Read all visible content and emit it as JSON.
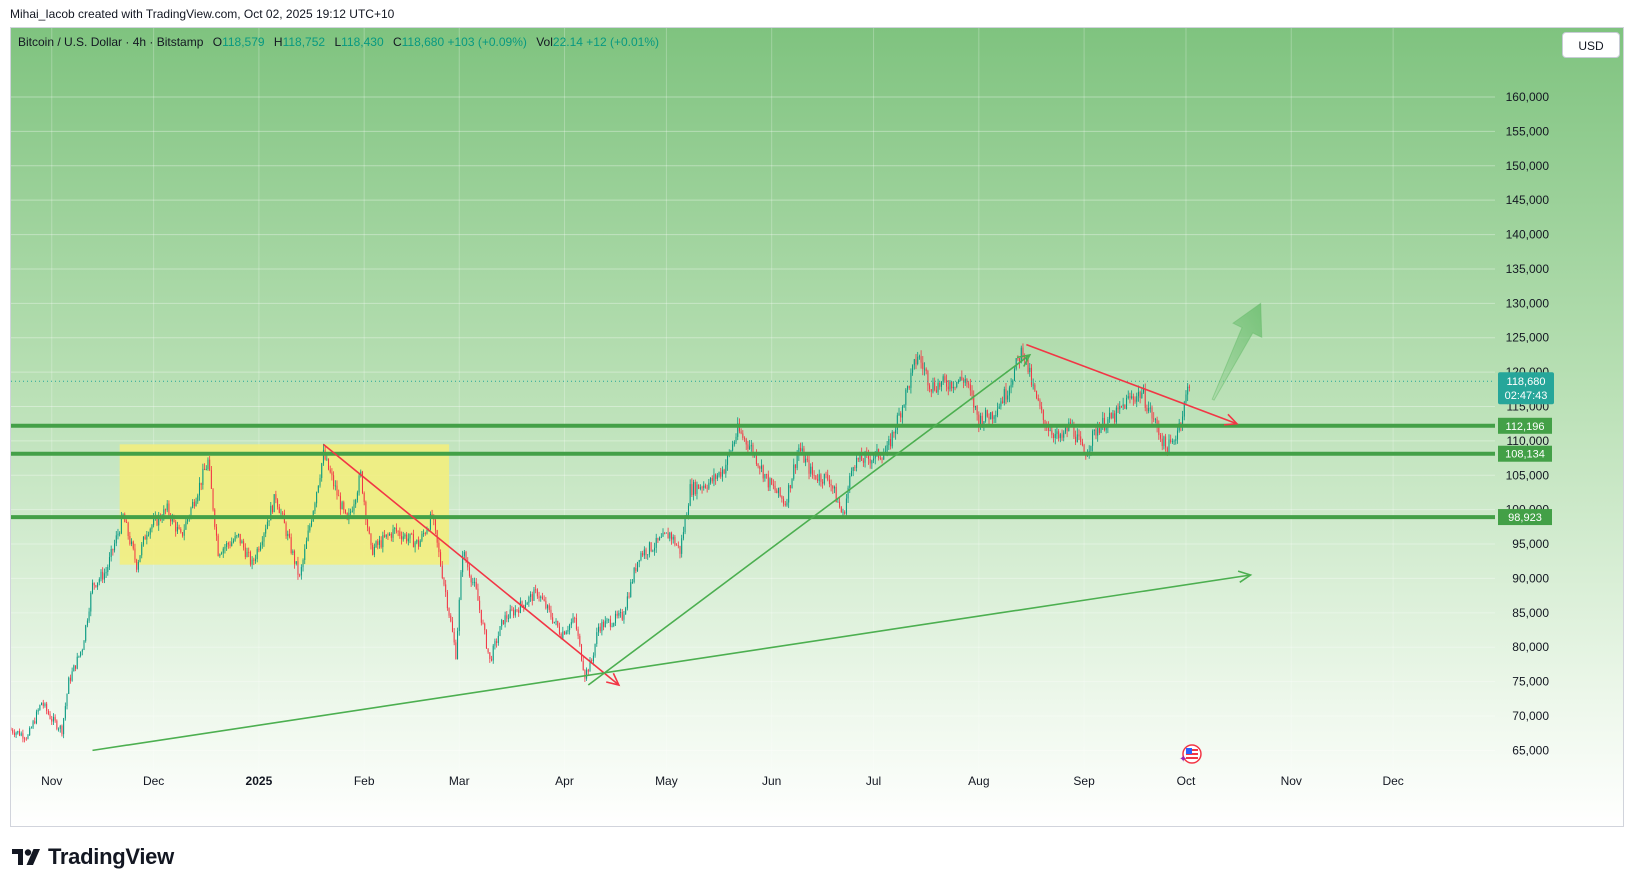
{
  "header": {
    "credit": "Mihai_Iacob created with TradingView.com, Oct 02, 2025 19:12 UTC+10"
  },
  "legend": {
    "symbol": "Bitcoin / U.S. Dollar · 4h · Bitstamp",
    "o_label": "O",
    "o_value": "118,579",
    "h_label": "H",
    "h_value": "118,752",
    "l_label": "L",
    "l_value": "118,430",
    "c_label": "C",
    "c_value": "118,680",
    "change": "+103 (+0.09%)",
    "vol_label": "Vol",
    "vol_value": "22.14",
    "vol_change": "+12 (+0.01%)"
  },
  "currency_button": "USD",
  "brand": {
    "name": "TradingView",
    "icon": "tradingview-logo-icon"
  },
  "colors": {
    "up": "#089981",
    "down": "#f23645",
    "level": "#43a047",
    "trend_green": "#4caf50",
    "trend_red": "#f23645",
    "box": "#f5ef7a",
    "price_tag": "#26a69a"
  },
  "chart_data": {
    "type": "candlestick",
    "symbol": "Bitcoin / U.S. Dollar",
    "interval": "4h",
    "exchange": "Bitstamp",
    "currency": "USD",
    "ylim": [
      62000,
      168000
    ],
    "y_ticks": [
      {
        "value": 65000,
        "label": "65,000"
      },
      {
        "value": 70000,
        "label": "70,000"
      },
      {
        "value": 75000,
        "label": "75,000"
      },
      {
        "value": 80000,
        "label": "80,000"
      },
      {
        "value": 85000,
        "label": "85,000"
      },
      {
        "value": 90000,
        "label": "90,000"
      },
      {
        "value": 95000,
        "label": "95,000"
      },
      {
        "value": 100000,
        "label": "100,000"
      },
      {
        "value": 105000,
        "label": "105,000"
      },
      {
        "value": 110000,
        "label": "110,000"
      },
      {
        "value": 115000,
        "label": "115,000"
      },
      {
        "value": 120000,
        "label": "120,000"
      },
      {
        "value": 125000,
        "label": "125,000"
      },
      {
        "value": 130000,
        "label": "130,000"
      },
      {
        "value": 135000,
        "label": "135,000"
      },
      {
        "value": 140000,
        "label": "140,000"
      },
      {
        "value": 145000,
        "label": "145,000"
      },
      {
        "value": 150000,
        "label": "150,000"
      },
      {
        "value": 155000,
        "label": "155,000"
      },
      {
        "value": 160000,
        "label": "160,000"
      }
    ],
    "x_range": [
      "2024-10-20",
      "2025-12-31"
    ],
    "x_ticks": [
      {
        "date": "2024-11-01",
        "label": "Nov",
        "bold": false
      },
      {
        "date": "2024-12-01",
        "label": "Dec",
        "bold": false
      },
      {
        "date": "2025-01-01",
        "label": "2025",
        "bold": true
      },
      {
        "date": "2025-02-01",
        "label": "Feb",
        "bold": false
      },
      {
        "date": "2025-03-01",
        "label": "Mar",
        "bold": false
      },
      {
        "date": "2025-04-01",
        "label": "Apr",
        "bold": false
      },
      {
        "date": "2025-05-01",
        "label": "May",
        "bold": false
      },
      {
        "date": "2025-06-01",
        "label": "Jun",
        "bold": false
      },
      {
        "date": "2025-07-01",
        "label": "Jul",
        "bold": false
      },
      {
        "date": "2025-08-01",
        "label": "Aug",
        "bold": false
      },
      {
        "date": "2025-09-01",
        "label": "Sep",
        "bold": false
      },
      {
        "date": "2025-10-01",
        "label": "Oct",
        "bold": false
      },
      {
        "date": "2025-11-01",
        "label": "Nov",
        "bold": false
      },
      {
        "date": "2025-12-01",
        "label": "Dec",
        "bold": false
      }
    ],
    "price_path": [
      [
        "2024-10-20",
        68000
      ],
      [
        "2024-10-25",
        67000
      ],
      [
        "2024-10-29",
        72000
      ],
      [
        "2024-11-01",
        69500
      ],
      [
        "2024-11-04",
        68000
      ],
      [
        "2024-11-06",
        75000
      ],
      [
        "2024-11-10",
        80000
      ],
      [
        "2024-11-13",
        89000
      ],
      [
        "2024-11-17",
        91000
      ],
      [
        "2024-11-22",
        99000
      ],
      [
        "2024-11-26",
        92000
      ],
      [
        "2024-11-29",
        97000
      ],
      [
        "2024-12-05",
        100000
      ],
      [
        "2024-12-09",
        96000
      ],
      [
        "2024-12-17",
        107000
      ],
      [
        "2024-12-20",
        94000
      ],
      [
        "2024-12-26",
        96000
      ],
      [
        "2024-12-30",
        92000
      ],
      [
        "2025-01-06",
        102000
      ],
      [
        "2025-01-13",
        90000
      ],
      [
        "2025-01-20",
        108000
      ],
      [
        "2025-01-27",
        98000
      ],
      [
        "2025-01-31",
        105000
      ],
      [
        "2025-02-03",
        94000
      ],
      [
        "2025-02-10",
        97000
      ],
      [
        "2025-02-17",
        95000
      ],
      [
        "2025-02-21",
        99000
      ],
      [
        "2025-02-25",
        88000
      ],
      [
        "2025-02-28",
        79000
      ],
      [
        "2025-03-02",
        94000
      ],
      [
        "2025-03-06",
        88000
      ],
      [
        "2025-03-10",
        78000
      ],
      [
        "2025-03-14",
        84000
      ],
      [
        "2025-03-19",
        86000
      ],
      [
        "2025-03-24",
        88000
      ],
      [
        "2025-03-31",
        82000
      ],
      [
        "2025-04-04",
        84000
      ],
      [
        "2025-04-07",
        76000
      ],
      [
        "2025-04-09",
        78000
      ],
      [
        "2025-04-11",
        83000
      ],
      [
        "2025-04-18",
        84500
      ],
      [
        "2025-04-23",
        93500
      ],
      [
        "2025-04-28",
        95000
      ],
      [
        "2025-05-02",
        96500
      ],
      [
        "2025-05-05",
        94000
      ],
      [
        "2025-05-08",
        103000
      ],
      [
        "2025-05-14",
        104000
      ],
      [
        "2025-05-18",
        106000
      ],
      [
        "2025-05-22",
        111500
      ],
      [
        "2025-05-26",
        109000
      ],
      [
        "2025-05-31",
        104000
      ],
      [
        "2025-06-05",
        101000
      ],
      [
        "2025-06-09",
        109000
      ],
      [
        "2025-06-13",
        105000
      ],
      [
        "2025-06-18",
        104500
      ],
      [
        "2025-06-22",
        99000
      ],
      [
        "2025-06-25",
        107000
      ],
      [
        "2025-06-30",
        107500
      ],
      [
        "2025-07-05",
        108500
      ],
      [
        "2025-07-10",
        116000
      ],
      [
        "2025-07-14",
        122500
      ],
      [
        "2025-07-18",
        118000
      ],
      [
        "2025-07-24",
        118500
      ],
      [
        "2025-07-28",
        119000
      ],
      [
        "2025-08-01",
        113000
      ],
      [
        "2025-08-05",
        114000
      ],
      [
        "2025-08-09",
        117000
      ],
      [
        "2025-08-14",
        123500
      ],
      [
        "2025-08-17",
        117500
      ],
      [
        "2025-08-20",
        113000
      ],
      [
        "2025-08-25",
        110000
      ],
      [
        "2025-08-28",
        112500
      ],
      [
        "2025-09-01",
        108000
      ],
      [
        "2025-09-05",
        112000
      ],
      [
        "2025-09-10",
        113500
      ],
      [
        "2025-09-14",
        116000
      ],
      [
        "2025-09-18",
        117000
      ],
      [
        "2025-09-22",
        112500
      ],
      [
        "2025-09-25",
        109000
      ],
      [
        "2025-09-27",
        109500
      ],
      [
        "2025-09-30",
        114000
      ],
      [
        "2025-10-02",
        118680
      ]
    ],
    "current_price": {
      "value": 118680,
      "label": "118,680",
      "countdown": "02:47:43"
    },
    "levels": [
      {
        "value": 112196,
        "label": "112,196"
      },
      {
        "value": 108134,
        "label": "108,134"
      },
      {
        "value": 98923,
        "label": "98,923"
      }
    ],
    "annotations": {
      "consolidation_box": {
        "x1": "2024-11-21",
        "x2": "2025-02-26",
        "y1": 92000,
        "y2": 109500
      },
      "trend_lines": [
        {
          "color": "red",
          "from": [
            "2025-01-20",
            109500
          ],
          "to": [
            "2025-04-17",
            74500
          ],
          "arrow": true
        },
        {
          "color": "green",
          "from": [
            "2025-04-08",
            74500
          ],
          "to": [
            "2025-08-16",
            122500
          ],
          "arrow": true
        },
        {
          "color": "red",
          "from": [
            "2025-08-15",
            124000
          ],
          "to": [
            "2025-10-16",
            112500
          ],
          "arrow": true
        },
        {
          "color": "green",
          "from": [
            "2024-11-13",
            65000
          ],
          "to": [
            "2025-10-20",
            90500
          ],
          "arrow": true
        }
      ],
      "projection_arrow": {
        "from": [
          "2025-10-09",
          116000
        ],
        "to": [
          "2025-10-23",
          130000
        ]
      }
    }
  }
}
